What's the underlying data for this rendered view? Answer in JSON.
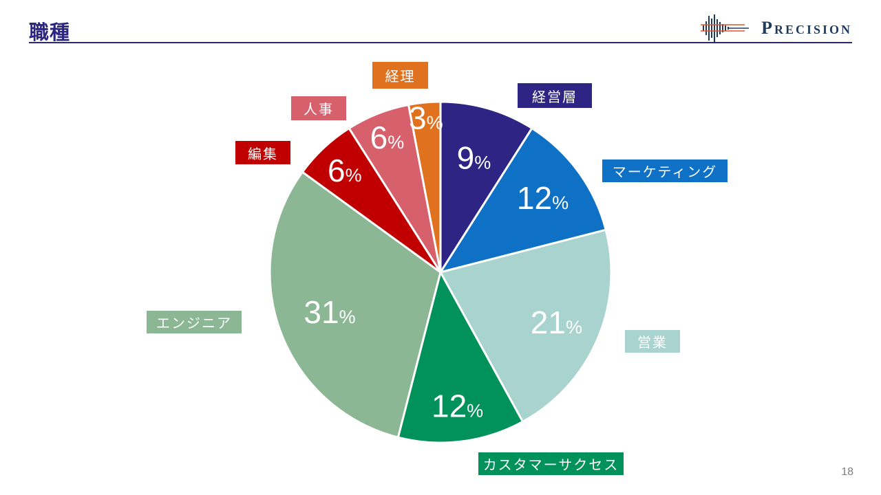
{
  "slide": {
    "title": "職種",
    "page_number": "18",
    "accent_color": "#2B2580"
  },
  "logo": {
    "text": "Precision",
    "text_color": "#1E3A5F",
    "waveform_color": "#1E3A5F",
    "crossline_color": "#E8502E"
  },
  "chart_data": {
    "type": "pie",
    "title": "職種",
    "unit": "%",
    "start_angle": "top",
    "direction": "clockwise",
    "slices": [
      {
        "label": "経営層",
        "value": 9,
        "color": "#2E2483"
      },
      {
        "label": "マーケティング",
        "value": 12,
        "color": "#0E71C5"
      },
      {
        "label": "営業",
        "value": 21,
        "color": "#A9D3CE"
      },
      {
        "label": "カスタマーサクセス",
        "value": 12,
        "color": "#00925A"
      },
      {
        "label": "エンジニア",
        "value": 31,
        "color": "#8CB795"
      },
      {
        "label": "編集",
        "value": 6,
        "color": "#C00000"
      },
      {
        "label": "人事",
        "value": 6,
        "color": "#D6606C"
      },
      {
        "label": "経理",
        "value": 3,
        "color": "#E0711E"
      }
    ],
    "value_label_color": "#FFFFFF",
    "layout": {
      "center": [
        640,
        396
      ],
      "radius": 248,
      "slice_gap_stroke": "#FFFFFF",
      "label_radius_factors": [
        0.7,
        0.74,
        0.74,
        0.79,
        0.69,
        0.82,
        0.85,
        0.91
      ],
      "legend": "floating-callouts"
    }
  }
}
